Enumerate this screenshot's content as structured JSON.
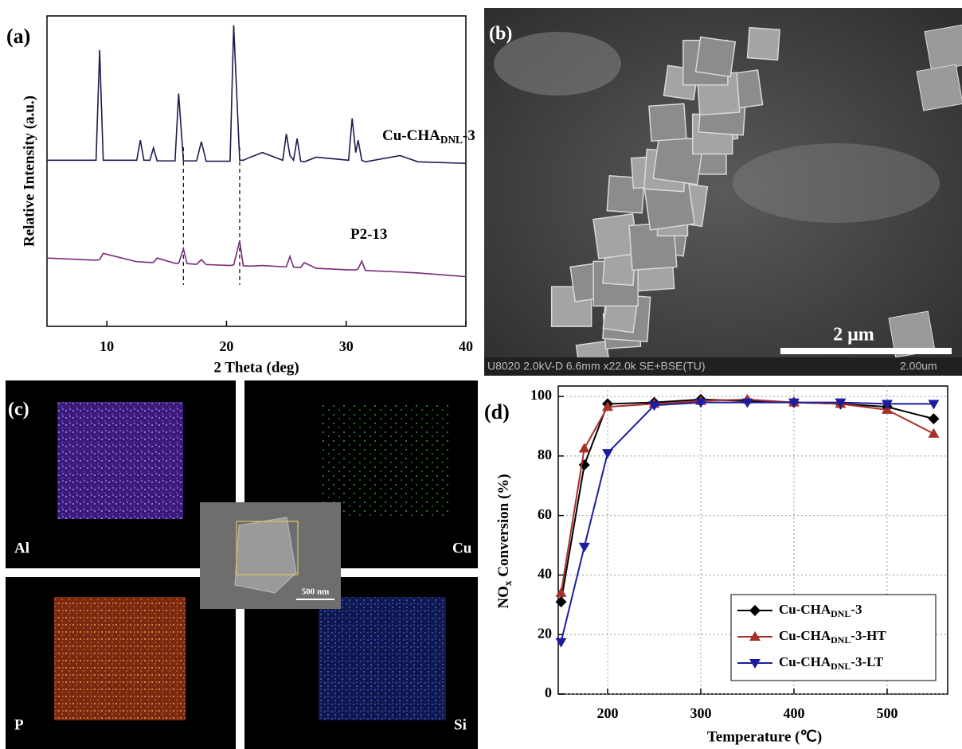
{
  "chart_data": [
    {
      "type": "line",
      "panel_label": "(a)",
      "xlabel": "2 Theta (deg)",
      "ylabel": "Relative Intensity (a.u.)",
      "x": [
        5,
        9.1,
        9.4,
        9.7,
        12.5,
        12.8,
        13.1,
        13.6,
        13.9,
        14.2,
        15.7,
        16.0,
        16.4,
        16.7,
        17.5,
        17.9,
        18.3,
        20.3,
        20.6,
        21.1,
        21.4,
        22.0,
        23.0,
        24.7,
        25.0,
        25.3,
        25.6,
        25.9,
        26.2,
        26.5,
        27.5,
        30.2,
        30.5,
        30.8,
        31.0,
        31.3,
        31.6,
        34.5,
        36.0,
        40
      ],
      "xlim": [
        5,
        40
      ],
      "xticks": [
        10,
        20,
        30,
        40
      ],
      "ylim": [
        0,
        100
      ],
      "reference_lines": [
        16.4,
        21.1
      ],
      "series": [
        {
          "name": [
            "Cu-CHA",
            "DNL",
            "-3"
          ],
          "color": "#1c1c50",
          "values": [
            53.5,
            53.5,
            89,
            53.5,
            53.5,
            60,
            53.5,
            53.5,
            57.5,
            53.3,
            53.3,
            75,
            53.3,
            53.3,
            53.3,
            59.5,
            53.2,
            53.2,
            97,
            53.5,
            53.5,
            54.5,
            56,
            53.5,
            62,
            55,
            53.5,
            60.5,
            53.2,
            53,
            54.5,
            53.5,
            67,
            56,
            60,
            53.5,
            53,
            55,
            53,
            52.5
          ]
        },
        {
          "name": [
            "P2-13"
          ],
          "color": "#7a2a7a",
          "values": [
            22,
            21.3,
            21.5,
            23.5,
            20.8,
            20.8,
            20.7,
            20.6,
            20.6,
            22,
            20.3,
            20.3,
            25,
            20.2,
            20.0,
            21.5,
            19.9,
            19.6,
            19.8,
            27.5,
            19.5,
            19.4,
            19.6,
            19.2,
            19.2,
            22.5,
            19.1,
            19.0,
            19,
            20.5,
            18.7,
            18.2,
            18.2,
            18.2,
            18.5,
            21,
            18,
            17.5,
            17.2,
            16
          ]
        }
      ]
    },
    {
      "type": "line",
      "panel_label": "(d)",
      "xlabel": "Temperature (℃)",
      "ylabel": [
        "NO",
        "x",
        " Conversion (%)"
      ],
      "x": [
        150,
        175,
        200,
        250,
        300,
        350,
        400,
        450,
        500,
        550
      ],
      "xlim": [
        147,
        565
      ],
      "xticks": [
        200,
        300,
        400,
        500
      ],
      "ylim": [
        0,
        103.5
      ],
      "yticks": [
        0,
        20,
        40,
        60,
        80,
        100
      ],
      "grid": true,
      "legend": "lower right",
      "series": [
        {
          "name": [
            "Cu-CHA",
            "DNL",
            "-3"
          ],
          "color": "#000000",
          "marker": "diamond",
          "values": [
            31,
            77,
            97.5,
            98,
            99,
            98.5,
            98,
            97.5,
            96.5,
            92.5
          ]
        },
        {
          "name": [
            "Cu-CHA",
            "DNL",
            "-3-HT"
          ],
          "color": "#a8302a",
          "marker": "triangle-up",
          "values": [
            34,
            82.5,
            96.5,
            97.5,
            98.5,
            99,
            98,
            97.5,
            95.5,
            87.5
          ]
        },
        {
          "name": [
            "Cu-CHA",
            "DNL",
            "-3-LT"
          ],
          "color": "#1c1ca0",
          "marker": "triangle-down",
          "values": [
            17.5,
            49.5,
            81,
            97,
            98,
            98,
            98,
            98,
            97.5,
            97.5
          ]
        }
      ]
    }
  ],
  "panels": {
    "b": {
      "label": "(b)",
      "scale_bar": "2 μm",
      "info": "U8020 2.0kV-D 6.6mm x22.0k SE+BSE(TU)",
      "info_scale": "2.00um"
    },
    "c": {
      "label": "(c)",
      "maps": [
        "Al",
        "Cu",
        "P",
        "Si"
      ],
      "inset_scale": "500 nm"
    }
  }
}
